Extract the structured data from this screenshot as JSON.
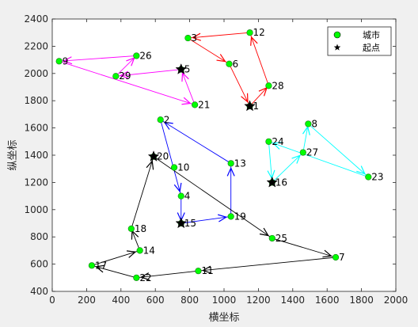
{
  "chart_data": {
    "type": "scatter",
    "xlabel": "横坐标",
    "ylabel": "纵坐标",
    "xlim": [
      0,
      2000
    ],
    "ylim": [
      400,
      2400
    ],
    "xticks": [
      0,
      200,
      400,
      600,
      800,
      1000,
      1200,
      1400,
      1600,
      1800,
      2000
    ],
    "yticks": [
      400,
      600,
      800,
      1000,
      1200,
      1400,
      1600,
      1800,
      2000,
      2200,
      2400
    ],
    "grid": false,
    "legend": {
      "location": "top-right",
      "entries": [
        {
          "label": "城市",
          "marker": "circle",
          "color": "#00ff00"
        },
        {
          "label": "起点",
          "marker": "star",
          "color": "#000000"
        }
      ]
    },
    "cities": [
      {
        "id": "1",
        "x": 1150,
        "y": 1760
      },
      {
        "id": "2",
        "x": 630,
        "y": 1660
      },
      {
        "id": "4",
        "x": 750,
        "y": 1100
      },
      {
        "id": "5",
        "x": 750,
        "y": 2030
      },
      {
        "id": "6",
        "x": 1030,
        "y": 2070
      },
      {
        "id": "7",
        "x": 1650,
        "y": 650
      },
      {
        "id": "8",
        "x": 1490,
        "y": 1630
      },
      {
        "id": "9",
        "x": 40,
        "y": 2090
      },
      {
        "id": "10",
        "x": 710,
        "y": 1310
      },
      {
        "id": "11",
        "x": 850,
        "y": 550
      },
      {
        "id": "12",
        "x": 1150,
        "y": 2300
      },
      {
        "id": "13",
        "x": 1040,
        "y": 1340
      },
      {
        "id": "14",
        "x": 510,
        "y": 700
      },
      {
        "id": "15",
        "x": 750,
        "y": 900
      },
      {
        "id": "16",
        "x": 1280,
        "y": 1200
      },
      {
        "id": "17",
        "x": 230,
        "y": 590
      },
      {
        "id": "18",
        "x": 460,
        "y": 860
      },
      {
        "id": "19",
        "x": 1040,
        "y": 950
      },
      {
        "id": "20",
        "x": 590,
        "y": 1390
      },
      {
        "id": "21",
        "x": 830,
        "y": 1770
      },
      {
        "id": "22",
        "x": 490,
        "y": 500
      },
      {
        "id": "23",
        "x": 1840,
        "y": 1240
      },
      {
        "id": "24",
        "x": 1260,
        "y": 1500
      },
      {
        "id": "25",
        "x": 1280,
        "y": 790
      },
      {
        "id": "26",
        "x": 490,
        "y": 2130
      },
      {
        "id": "27",
        "x": 1460,
        "y": 1420
      },
      {
        "id": "28",
        "x": 1260,
        "y": 1910
      },
      {
        "id": "29",
        "x": 370,
        "y": 1980
      },
      {
        "id": "3",
        "x": 790,
        "y": 2260
      }
    ],
    "start_points": [
      {
        "x": 1150,
        "y": 1760
      },
      {
        "x": 750,
        "y": 2030
      },
      {
        "x": 1280,
        "y": 1200
      },
      {
        "x": 750,
        "y": 900
      },
      {
        "x": 590,
        "y": 1390
      }
    ],
    "routes": [
      {
        "color": "#ff0000",
        "path": [
          [
            1150,
            1760
          ],
          [
            1260,
            1910
          ],
          [
            1150,
            2300
          ],
          [
            790,
            2260
          ],
          [
            1030,
            2070
          ],
          [
            1150,
            1760
          ]
        ]
      },
      {
        "color": "#ff00ff",
        "path": [
          [
            750,
            2030
          ],
          [
            370,
            1980
          ],
          [
            490,
            2130
          ],
          [
            40,
            2090
          ],
          [
            830,
            1770
          ],
          [
            750,
            2030
          ]
        ]
      },
      {
        "color": "#00ffff",
        "path": [
          [
            1280,
            1200
          ],
          [
            1460,
            1420
          ],
          [
            1490,
            1630
          ],
          [
            1840,
            1240
          ],
          [
            1260,
            1500
          ],
          [
            1280,
            1200
          ]
        ]
      },
      {
        "color": "#0000ff",
        "path": [
          [
            750,
            900
          ],
          [
            1040,
            950
          ],
          [
            1040,
            1340
          ],
          [
            630,
            1660
          ],
          [
            750,
            1100
          ],
          [
            750,
            900
          ]
        ]
      },
      {
        "color": "#000000",
        "path": [
          [
            590,
            1390
          ],
          [
            1280,
            790
          ],
          [
            1650,
            650
          ],
          [
            850,
            550
          ],
          [
            490,
            500
          ],
          [
            230,
            590
          ],
          [
            510,
            700
          ],
          [
            460,
            860
          ],
          [
            590,
            1390
          ]
        ]
      }
    ]
  }
}
